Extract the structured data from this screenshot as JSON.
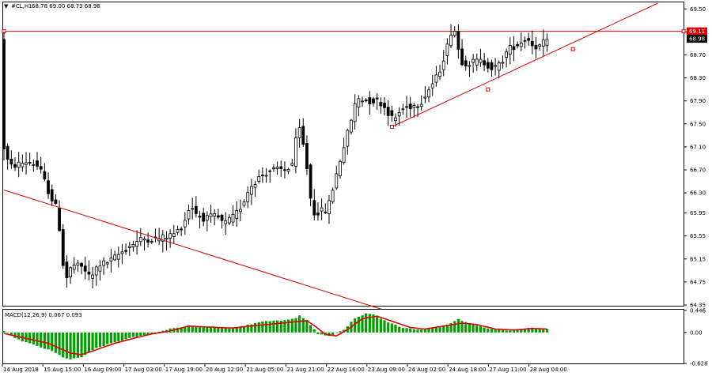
{
  "header": {
    "symbol_label": "#CL,H1",
    "ohlc_label": "68.78 69.00 68.73 68.98"
  },
  "colors": {
    "candle": "#000000",
    "frame": "#000000",
    "trendline": "#e00000",
    "hline": "#e00000",
    "signal": "#e00000",
    "histogram": "#00a000",
    "price_tag_bg": "#000000",
    "level_tag_bg": "#e00000"
  },
  "chart_data": [
    {
      "type": "candlestick",
      "symbol": "#CL",
      "timeframe": "H1",
      "ylim": [
        64.35,
        69.6
      ],
      "y_ticks": [
        "69.50",
        "69.10",
        "68.70",
        "68.30",
        "67.90",
        "67.50",
        "67.10",
        "66.70",
        "66.30",
        "65.95",
        "65.55",
        "65.15",
        "64.75",
        "64.35"
      ],
      "x_ticks": [
        "14 Aug 2018",
        "15 Aug 15:00",
        "16 Aug 09:00",
        "17 Aug 03:00",
        "17 Aug 19:00",
        "20 Aug 12:00",
        "21 Aug 05:00",
        "21 Aug 21:00",
        "22 Aug 16:00",
        "23 Aug 09:00",
        "24 Aug 02:00",
        "24 Aug 18:00",
        "27 Aug 11:00",
        "28 Aug 04:00"
      ],
      "current_price": "68.98",
      "horizontal_level": "69.11",
      "path": [
        [
          0,
          67.2
        ],
        [
          2,
          66.75
        ],
        [
          7,
          66.85
        ],
        [
          10,
          66.75
        ],
        [
          13,
          66.25
        ],
        [
          15,
          66.0
        ],
        [
          17,
          64.75
        ],
        [
          19,
          65.05
        ],
        [
          22,
          65.0
        ],
        [
          24,
          64.8
        ],
        [
          26,
          65.05
        ],
        [
          29,
          65.1
        ],
        [
          32,
          65.25
        ],
        [
          35,
          65.4
        ],
        [
          38,
          65.5
        ],
        [
          42,
          65.5
        ],
        [
          45,
          65.55
        ],
        [
          47,
          65.6
        ],
        [
          49,
          65.75
        ],
        [
          51,
          66.1
        ],
        [
          53,
          65.9
        ],
        [
          55,
          65.85
        ],
        [
          58,
          65.9
        ],
        [
          60,
          65.75
        ],
        [
          63,
          65.9
        ],
        [
          65,
          66.1
        ],
        [
          67,
          66.4
        ],
        [
          70,
          66.6
        ],
        [
          73,
          66.7
        ],
        [
          77,
          66.7
        ],
        [
          79,
          66.85
        ],
        [
          80,
          67.55
        ],
        [
          81,
          67.25
        ],
        [
          82,
          67.0
        ],
        [
          84,
          65.95
        ],
        [
          88,
          66.0
        ],
        [
          90,
          66.5
        ],
        [
          92,
          67.0
        ],
        [
          94,
          67.45
        ],
        [
          96,
          67.95
        ],
        [
          99,
          67.9
        ],
        [
          102,
          67.9
        ],
        [
          104,
          67.75
        ],
        [
          106,
          67.55
        ],
        [
          108,
          67.75
        ],
        [
          110,
          67.8
        ],
        [
          113,
          67.85
        ],
        [
          116,
          68.15
        ],
        [
          118,
          68.35
        ],
        [
          120,
          68.75
        ],
        [
          121,
          68.95
        ],
        [
          122,
          69.25
        ],
        [
          123,
          69.0
        ],
        [
          124,
          68.6
        ],
        [
          126,
          68.55
        ],
        [
          129,
          68.6
        ],
        [
          131,
          68.55
        ],
        [
          133,
          68.45
        ],
        [
          135,
          68.55
        ],
        [
          137,
          68.8
        ],
        [
          140,
          68.9
        ],
        [
          142,
          69.0
        ],
        [
          144,
          68.85
        ],
        [
          146,
          68.85
        ],
        [
          147,
          68.95
        ]
      ],
      "trendlines": [
        {
          "name": "descending-trendline",
          "from": [
            0,
            66.35
          ],
          "to": [
            102,
            64.28
          ]
        },
        {
          "name": "ascending-trendline",
          "from": [
            105,
            67.45
          ],
          "to": [
            177,
            69.6
          ]
        }
      ],
      "trendline_anchors": [
        [
          105,
          67.45
        ],
        [
          131,
          68.1
        ],
        [
          154,
          68.8
        ]
      ]
    },
    {
      "type": "bar",
      "title": "MACD(12,26,9) 0.067 0.093",
      "ylim": [
        -0.628,
        0.446
      ],
      "y_ticks": [
        "0.446",
        "0.00",
        "-0.628"
      ],
      "histogram_path": [
        [
          0,
          0.02
        ],
        [
          4,
          -0.15
        ],
        [
          8,
          -0.25
        ],
        [
          13,
          -0.38
        ],
        [
          16,
          -0.5
        ],
        [
          18,
          -0.55
        ],
        [
          21,
          -0.5
        ],
        [
          25,
          -0.32
        ],
        [
          30,
          -0.2
        ],
        [
          35,
          -0.1
        ],
        [
          40,
          -0.03
        ],
        [
          45,
          0.08
        ],
        [
          50,
          0.13
        ],
        [
          56,
          0.1
        ],
        [
          62,
          0.08
        ],
        [
          66,
          0.15
        ],
        [
          70,
          0.22
        ],
        [
          75,
          0.24
        ],
        [
          79,
          0.3
        ],
        [
          80,
          0.34
        ],
        [
          82,
          0.25
        ],
        [
          85,
          -0.03
        ],
        [
          88,
          -0.08
        ],
        [
          92,
          0.06
        ],
        [
          95,
          0.28
        ],
        [
          98,
          0.38
        ],
        [
          100,
          0.36
        ],
        [
          104,
          0.2
        ],
        [
          108,
          0.1
        ],
        [
          112,
          0.06
        ],
        [
          116,
          0.09
        ],
        [
          120,
          0.16
        ],
        [
          123,
          0.27
        ],
        [
          126,
          0.19
        ],
        [
          130,
          0.1
        ],
        [
          134,
          0.05
        ],
        [
          138,
          0.04
        ],
        [
          142,
          0.09
        ],
        [
          146,
          0.08
        ],
        [
          147,
          0.07
        ]
      ],
      "signal_path": [
        [
          0,
          -0.02
        ],
        [
          6,
          -0.12
        ],
        [
          12,
          -0.22
        ],
        [
          18,
          -0.42
        ],
        [
          21,
          -0.45
        ],
        [
          25,
          -0.35
        ],
        [
          30,
          -0.22
        ],
        [
          35,
          -0.12
        ],
        [
          40,
          -0.03
        ],
        [
          45,
          0.03
        ],
        [
          50,
          0.13
        ],
        [
          55,
          0.11
        ],
        [
          62,
          0.09
        ],
        [
          68,
          0.14
        ],
        [
          74,
          0.18
        ],
        [
          78,
          0.21
        ],
        [
          82,
          0.24
        ],
        [
          84,
          0.14
        ],
        [
          87,
          -0.04
        ],
        [
          90,
          -0.07
        ],
        [
          93,
          0.06
        ],
        [
          97,
          0.28
        ],
        [
          101,
          0.33
        ],
        [
          105,
          0.23
        ],
        [
          110,
          0.1
        ],
        [
          114,
          0.07
        ],
        [
          119,
          0.13
        ],
        [
          124,
          0.19
        ],
        [
          128,
          0.16
        ],
        [
          133,
          0.07
        ],
        [
          138,
          0.05
        ],
        [
          143,
          0.08
        ],
        [
          147,
          0.07
        ]
      ]
    }
  ]
}
